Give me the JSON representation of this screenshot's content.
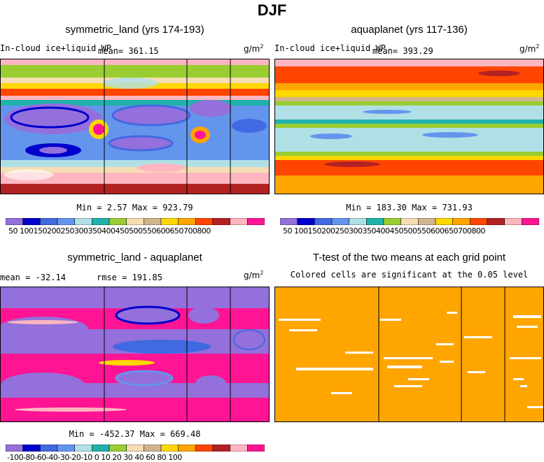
{
  "figure_title": "DJF",
  "panels": {
    "p1": {
      "title": "symmetric_land (yrs 174-193)",
      "left_label": "In-cloud ice+liquid WP",
      "mean_text": "mean= 361.15",
      "units": "g/m",
      "units_exp": "2",
      "minmax_text": "Min =    2.57 Max = 923.79"
    },
    "p2": {
      "title": "aquaplanet (yrs 117-136)",
      "left_label": "In-cloud ice+liquid WP",
      "mean_text": "mean= 393.29",
      "units": "g/m",
      "units_exp": "2",
      "minmax_text": "Min = 183.30 Max = 731.93"
    },
    "p3": {
      "title": "symmetric_land - aquaplanet",
      "mean_text": "mean = -32.14",
      "rmse_text": "rmse = 191.85",
      "units": "g/m",
      "units_exp": "2",
      "minmax_text": "Min = -452.37 Max = 669.48"
    },
    "p4": {
      "title": "T-test of the two means at each grid point",
      "subtitle": "Colored cells are significant at the 0.05 level"
    }
  },
  "colorbars": {
    "top_labels_text": "50 100150200250300350400450500550600650700800",
    "bottom_labels_text": "-100-80-60-40-30-20-10 0  10  20  30  40  60  80 100",
    "palette": [
      "#9370db",
      "#0000cd",
      "#4169e1",
      "#6495ed",
      "#b0e0e6",
      "#20b2aa",
      "#9acd32",
      "#f5deb3",
      "#d2b48c",
      "#ffd700",
      "#ffa500",
      "#ff4500",
      "#b22222",
      "#ffb6c1",
      "#ff1493"
    ],
    "ttest_color": "#ffa500"
  },
  "chart_data": [
    {
      "type": "heatmap",
      "title": "symmetric_land (yrs 174-193)",
      "variable": "In-cloud ice+liquid WP",
      "units": "g/m^2",
      "mean": 361.15,
      "min": 2.57,
      "max": 923.79,
      "contour_levels": [
        50,
        100,
        150,
        200,
        250,
        300,
        350,
        400,
        450,
        500,
        550,
        600,
        650,
        700,
        800
      ]
    },
    {
      "type": "heatmap",
      "title": "aquaplanet (yrs 117-136)",
      "variable": "In-cloud ice+liquid WP",
      "units": "g/m^2",
      "mean": 393.29,
      "min": 183.3,
      "max": 731.93,
      "contour_levels": [
        50,
        100,
        150,
        200,
        250,
        300,
        350,
        400,
        450,
        500,
        550,
        600,
        650,
        700,
        800
      ]
    },
    {
      "type": "heatmap",
      "title": "symmetric_land - aquaplanet",
      "units": "g/m^2",
      "mean": -32.14,
      "rmse": 191.85,
      "min": -452.37,
      "max": 669.48,
      "contour_levels": [
        -100,
        -80,
        -60,
        -40,
        -30,
        -20,
        -10,
        0,
        10,
        20,
        30,
        40,
        60,
        80,
        100
      ]
    },
    {
      "type": "heatmap",
      "title": "T-test of the two means at each grid point",
      "subtitle": "Colored cells are significant at the 0.05 level",
      "significance_level": 0.05
    }
  ]
}
